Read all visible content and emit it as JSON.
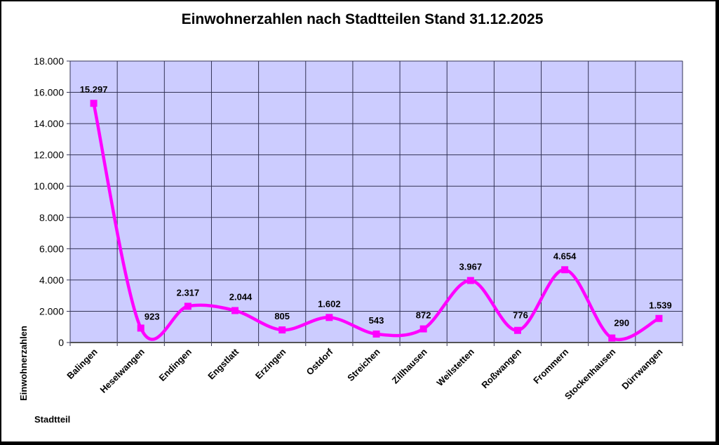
{
  "chart_title": "Einwohnerzahlen nach Stadtteilen Stand 31.12.2025",
  "axes": {
    "x_title": "Stadtteil",
    "y_title": "Einwohnerzahlen",
    "y_ticks": [
      "0",
      "2.000",
      "4.000",
      "6.000",
      "8.000",
      "10.000",
      "12.000",
      "14.000",
      "16.000",
      "18.000"
    ]
  },
  "colors": {
    "plot_background": "#ccccff",
    "gridline": "#333355",
    "series_line": "#ff00ff",
    "marker": "#ff00ff"
  },
  "chart_data": {
    "type": "line",
    "title": "Einwohnerzahlen nach Stadtteilen Stand 31.12.2025",
    "xlabel": "Stadtteil",
    "ylabel": "Einwohnerzahlen",
    "ylim": [
      0,
      18000
    ],
    "y_tick_step": 2000,
    "grid": true,
    "smoothed": true,
    "legend": null,
    "categories": [
      "Balingen",
      "Heselwangen",
      "Endingen",
      "Engstlatt",
      "Erzingen",
      "Ostdorf",
      "Streichen",
      "Zillhausen",
      "Weilstetten",
      "Roßwangen",
      "Frommern",
      "Stockenhausen",
      "Dürrwangen"
    ],
    "series": [
      {
        "name": "Einwohnerzahlen",
        "values": [
          15297,
          923,
          2317,
          2044,
          805,
          1602,
          543,
          872,
          3967,
          776,
          4654,
          290,
          1539
        ],
        "data_labels": [
          "15.297",
          "923",
          "2.317",
          "2.044",
          "805",
          "1.602",
          "543",
          "872",
          "3.967",
          "776",
          "4.654",
          "290",
          "1.539"
        ]
      }
    ]
  }
}
